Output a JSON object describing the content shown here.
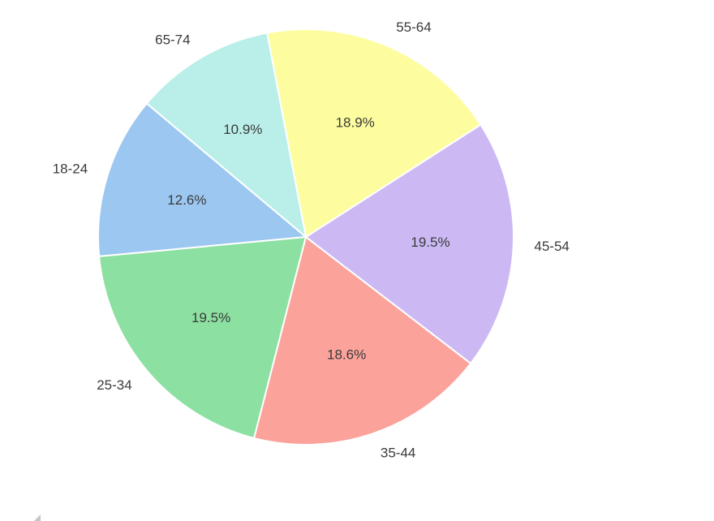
{
  "chart_data": {
    "type": "pie",
    "title": "",
    "categories": [
      "18-24",
      "25-34",
      "35-44",
      "45-54",
      "55-64",
      "65-74"
    ],
    "values": [
      12.6,
      19.5,
      18.6,
      19.5,
      18.9,
      10.9
    ],
    "percent_labels": [
      "12.6%",
      "19.5%",
      "18.6%",
      "19.5%",
      "18.9%",
      "10.9%"
    ],
    "colors": [
      "#9cc7f1",
      "#8ce0a1",
      "#fba29b",
      "#ccb9f4",
      "#fdfd9f",
      "#b9efe8"
    ],
    "slice_border_color": "#ffffff",
    "text_color": "#3a3a3a",
    "start_angle": 140,
    "direction": "counterclockwise",
    "pct_distance": 0.6,
    "label_distance": 1.1,
    "legend": false,
    "background": "#ffffff"
  },
  "misc": {
    "corner_grip_color": "#c6c6c6"
  }
}
